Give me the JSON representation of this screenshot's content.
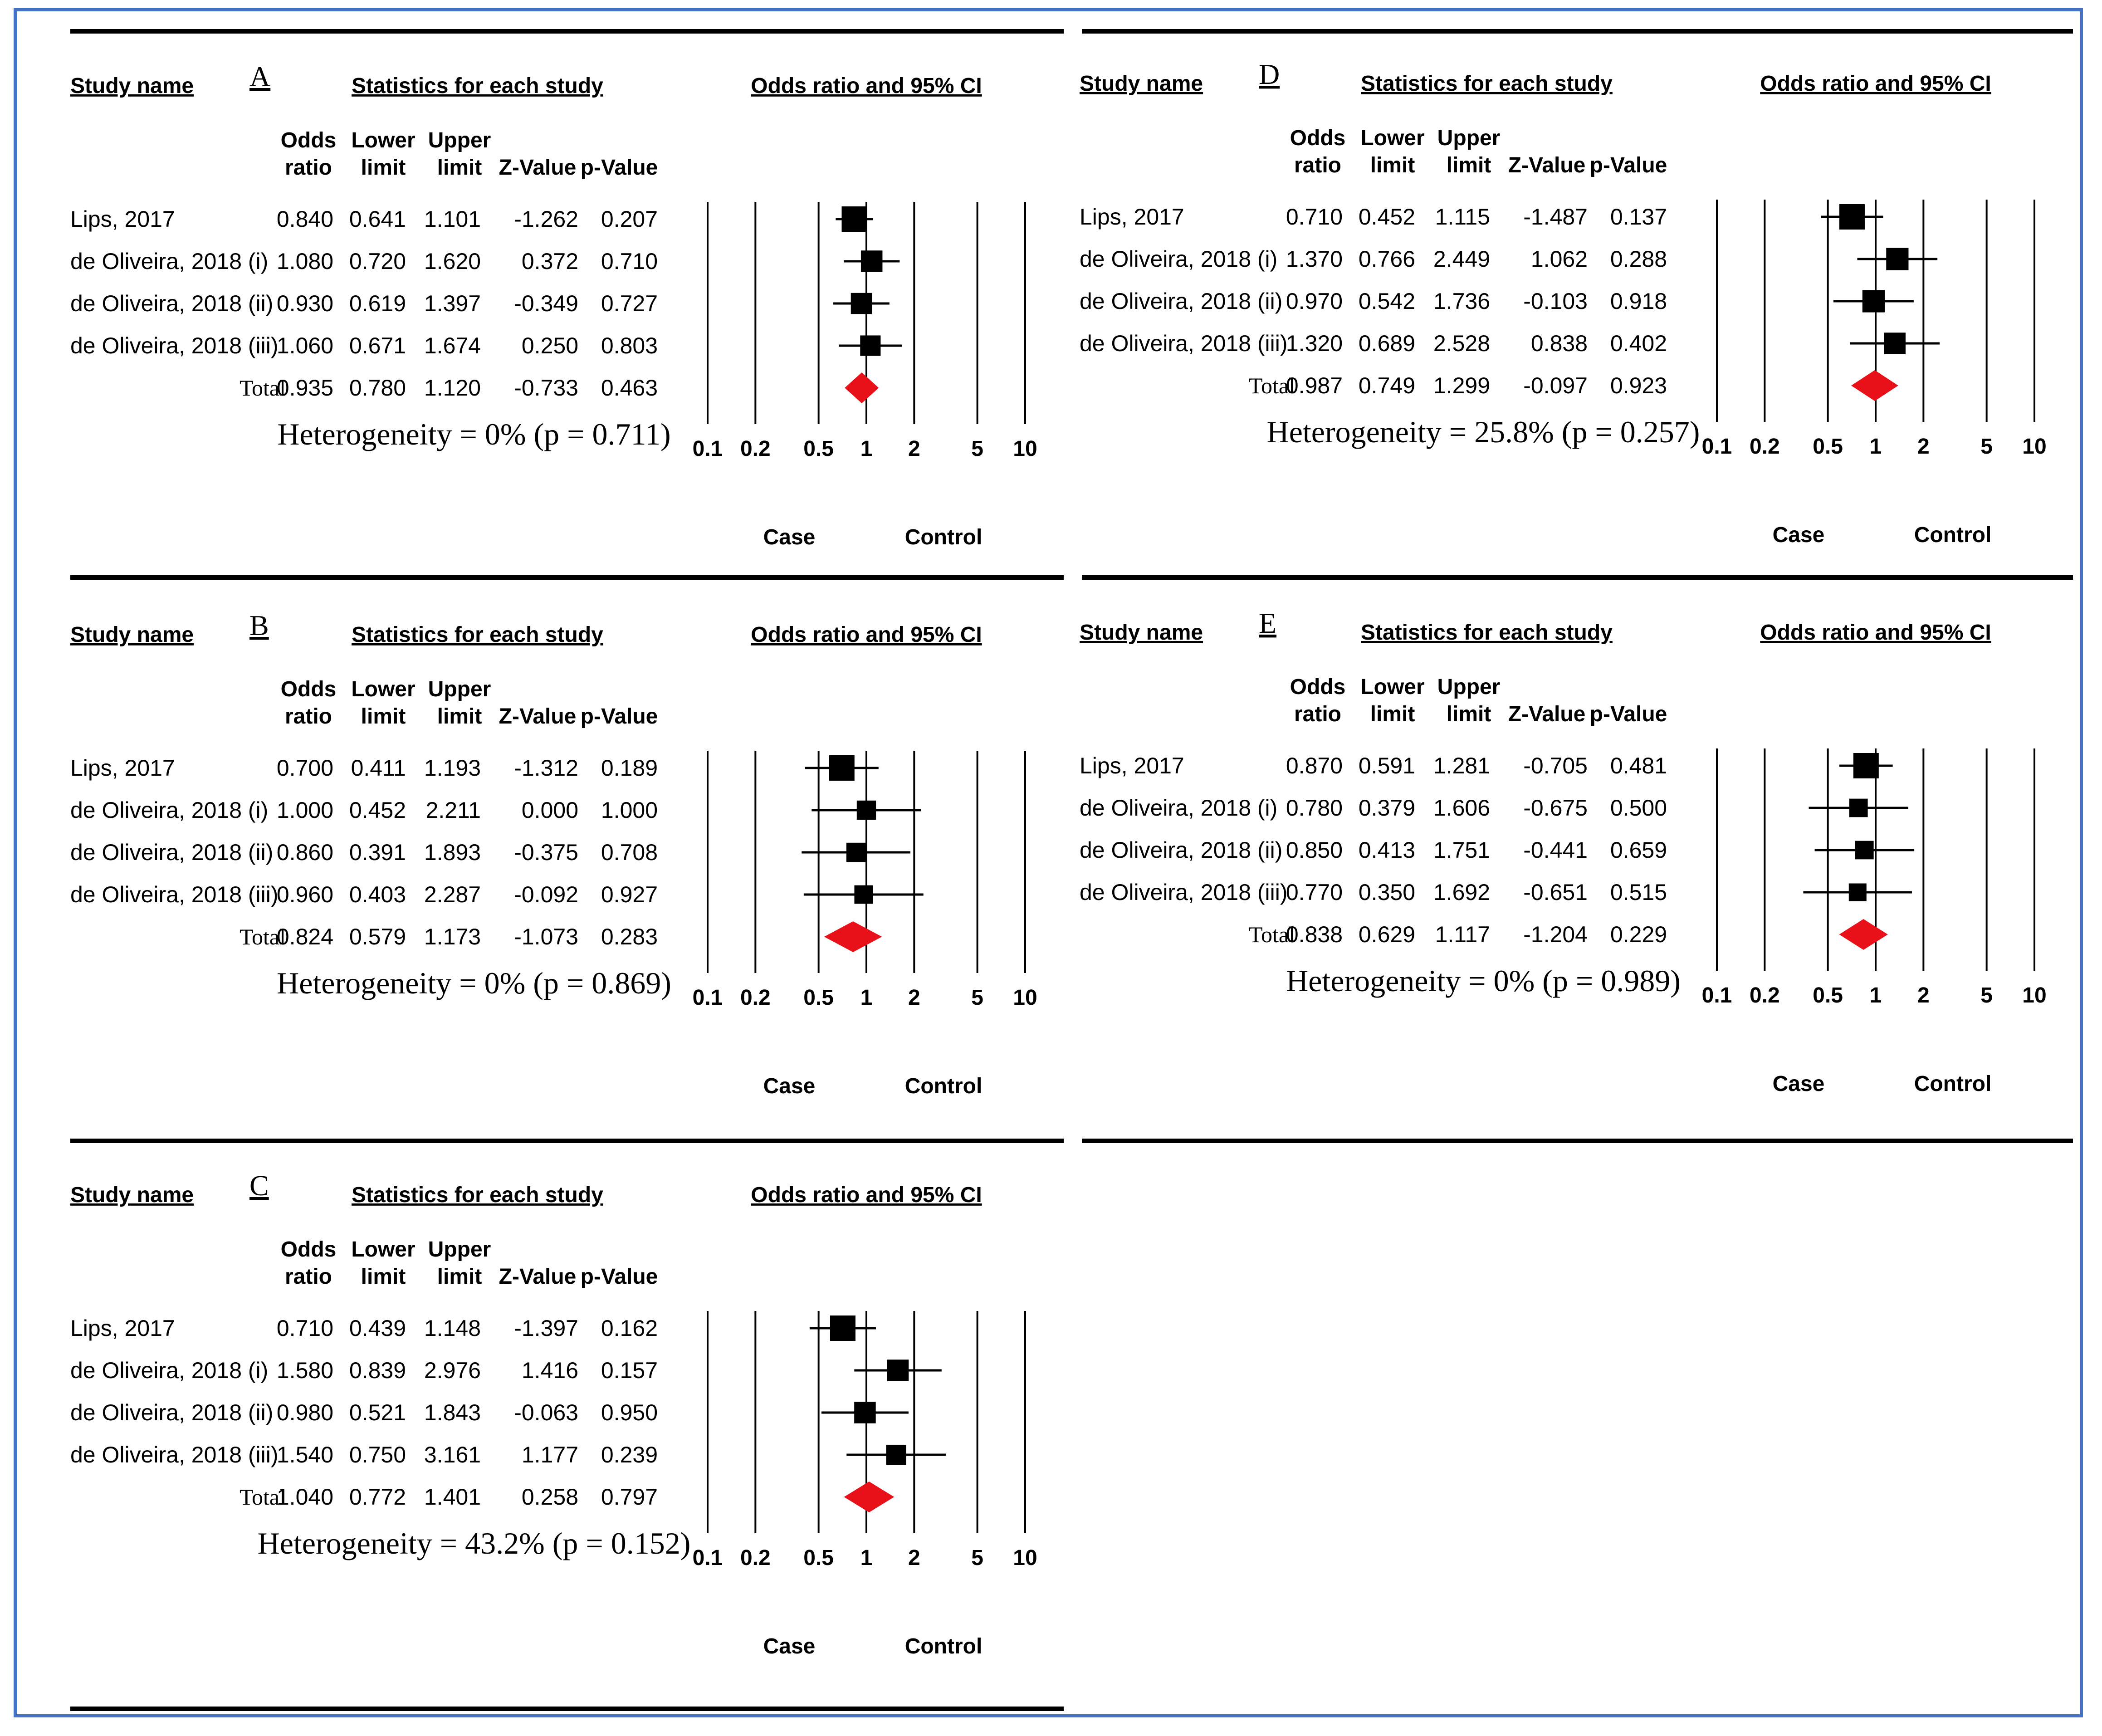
{
  "chart_data": [
    {
      "type": "forest",
      "panel": "A",
      "title": "Odds ratio and 95% CI",
      "headers": {
        "study": "Study name",
        "stats": "Statistics for each study",
        "or1": "Odds",
        "or2": "ratio",
        "ll1": "Lower",
        "ll2": "limit",
        "ul1": "Upper",
        "ul2": "limit",
        "z": "Z-Value",
        "p": "p-Value"
      },
      "rows": [
        {
          "name": "Lips, 2017",
          "or": "0.840",
          "lower": "0.641",
          "upper": "1.101",
          "z": "-1.262",
          "p": "0.207",
          "weight": 1.0
        },
        {
          "name": "de Oliveira, 2018 (i)",
          "or": "1.080",
          "lower": "0.720",
          "upper": "1.620",
          "z": "0.372",
          "p": "0.710",
          "weight": 0.75
        },
        {
          "name": "de Oliveira, 2018 (ii)",
          "or": "0.930",
          "lower": "0.619",
          "upper": "1.397",
          "z": "-0.349",
          "p": "0.727",
          "weight": 0.72
        },
        {
          "name": "de Oliveira, 2018 (iii)",
          "or": "1.060",
          "lower": "0.671",
          "upper": "1.674",
          "z": "0.250",
          "p": "0.803",
          "weight": 0.68
        }
      ],
      "total": {
        "name": "Total",
        "or": "0.935",
        "lower": "0.780",
        "upper": "1.120",
        "z": "-0.733",
        "p": "0.463"
      },
      "heterogeneity": "Heterogeneity = 0% (p = 0.711)",
      "ticks": [
        "0.1",
        "0.2",
        "0.5",
        "1",
        "2",
        "5",
        "10"
      ],
      "xlim": [
        0.1,
        10
      ],
      "left_label": "Case",
      "right_label": "Control"
    },
    {
      "type": "forest",
      "panel": "B",
      "title": "Odds ratio and 95% CI",
      "headers": {
        "study": "Study name",
        "stats": "Statistics for each study",
        "or1": "Odds",
        "or2": "ratio",
        "ll1": "Lower",
        "ll2": "limit",
        "ul1": "Upper",
        "ul2": "limit",
        "z": "Z-Value",
        "p": "p-Value"
      },
      "rows": [
        {
          "name": "Lips, 2017",
          "or": "0.700",
          "lower": "0.411",
          "upper": "1.193",
          "z": "-1.312",
          "p": "0.189",
          "weight": 1.0
        },
        {
          "name": "de Oliveira, 2018 (i)",
          "or": "1.000",
          "lower": "0.452",
          "upper": "2.211",
          "z": "0.000",
          "p": "1.000",
          "weight": 0.6
        },
        {
          "name": "de Oliveira, 2018 (ii)",
          "or": "0.860",
          "lower": "0.391",
          "upper": "1.893",
          "z": "-0.375",
          "p": "0.708",
          "weight": 0.6
        },
        {
          "name": "de Oliveira, 2018 (iii)",
          "or": "0.960",
          "lower": "0.403",
          "upper": "2.287",
          "z": "-0.092",
          "p": "0.927",
          "weight": 0.55
        }
      ],
      "total": {
        "name": "Total",
        "or": "0.824",
        "lower": "0.579",
        "upper": "1.173",
        "z": "-1.073",
        "p": "0.283"
      },
      "heterogeneity": "Heterogeneity = 0% (p = 0.869)",
      "ticks": [
        "0.1",
        "0.2",
        "0.5",
        "1",
        "2",
        "5",
        "10"
      ],
      "xlim": [
        0.1,
        10
      ],
      "left_label": "Case",
      "right_label": "Control"
    },
    {
      "type": "forest",
      "panel": "C",
      "title": "Odds ratio and 95% CI",
      "headers": {
        "study": "Study name",
        "stats": "Statistics for each study",
        "or1": "Odds",
        "or2": "ratio",
        "ll1": "Lower",
        "ll2": "limit",
        "ul1": "Upper",
        "ul2": "limit",
        "z": "Z-Value",
        "p": "p-Value"
      },
      "rows": [
        {
          "name": "Lips, 2017",
          "or": "0.710",
          "lower": "0.439",
          "upper": "1.148",
          "z": "-1.397",
          "p": "0.162",
          "weight": 1.0
        },
        {
          "name": "de Oliveira, 2018 (i)",
          "or": "1.580",
          "lower": "0.839",
          "upper": "2.976",
          "z": "1.416",
          "p": "0.157",
          "weight": 0.75
        },
        {
          "name": "de Oliveira, 2018 (ii)",
          "or": "0.980",
          "lower": "0.521",
          "upper": "1.843",
          "z": "-0.063",
          "p": "0.950",
          "weight": 0.75
        },
        {
          "name": "de Oliveira, 2018 (iii)",
          "or": "1.540",
          "lower": "0.750",
          "upper": "3.161",
          "z": "1.177",
          "p": "0.239",
          "weight": 0.65
        }
      ],
      "total": {
        "name": "Total",
        "or": "1.040",
        "lower": "0.772",
        "upper": "1.401",
        "z": "0.258",
        "p": "0.797"
      },
      "heterogeneity": "Heterogeneity = 43.2% (p = 0.152)",
      "ticks": [
        "0.1",
        "0.2",
        "0.5",
        "1",
        "2",
        "5",
        "10"
      ],
      "xlim": [
        0.1,
        10
      ],
      "left_label": "Case",
      "right_label": "Control"
    },
    {
      "type": "forest",
      "panel": "D",
      "title": "Odds ratio and 95% CI",
      "headers": {
        "study": "Study name",
        "stats": "Statistics for each study",
        "or1": "Odds",
        "or2": "ratio",
        "ll1": "Lower",
        "ll2": "limit",
        "ul1": "Upper",
        "ul2": "limit",
        "z": "Z-Value",
        "p": "p-Value"
      },
      "rows": [
        {
          "name": "Lips, 2017",
          "or": "0.710",
          "lower": "0.452",
          "upper": "1.115",
          "z": "-1.487",
          "p": "0.137",
          "weight": 1.0
        },
        {
          "name": "de Oliveira, 2018 (i)",
          "or": "1.370",
          "lower": "0.766",
          "upper": "2.449",
          "z": "1.062",
          "p": "0.288",
          "weight": 0.8
        },
        {
          "name": "de Oliveira, 2018 (ii)",
          "or": "0.970",
          "lower": "0.542",
          "upper": "1.736",
          "z": "-0.103",
          "p": "0.918",
          "weight": 0.8
        },
        {
          "name": "de Oliveira, 2018 (iii)",
          "or": "1.320",
          "lower": "0.689",
          "upper": "2.528",
          "z": "0.838",
          "p": "0.402",
          "weight": 0.75
        }
      ],
      "total": {
        "name": "Total",
        "or": "0.987",
        "lower": "0.749",
        "upper": "1.299",
        "z": "-0.097",
        "p": "0.923"
      },
      "heterogeneity": "Heterogeneity = 25.8% (p = 0.257)",
      "ticks": [
        "0.1",
        "0.2",
        "0.5",
        "1",
        "2",
        "5",
        "10"
      ],
      "xlim": [
        0.1,
        10
      ],
      "left_label": "Case",
      "right_label": "Control"
    },
    {
      "type": "forest",
      "panel": "E",
      "title": "Odds ratio and 95% CI",
      "headers": {
        "study": "Study name",
        "stats": "Statistics for each study",
        "or1": "Odds",
        "or2": "ratio",
        "ll1": "Lower",
        "ll2": "limit",
        "ul1": "Upper",
        "ul2": "limit",
        "z": "Z-Value",
        "p": "p-Value"
      },
      "rows": [
        {
          "name": "Lips, 2017",
          "or": "0.870",
          "lower": "0.591",
          "upper": "1.281",
          "z": "-0.705",
          "p": "0.481",
          "weight": 1.0
        },
        {
          "name": "de Oliveira, 2018 (i)",
          "or": "0.780",
          "lower": "0.379",
          "upper": "1.606",
          "z": "-0.675",
          "p": "0.500",
          "weight": 0.55
        },
        {
          "name": "de Oliveira, 2018 (ii)",
          "or": "0.850",
          "lower": "0.413",
          "upper": "1.751",
          "z": "-0.441",
          "p": "0.659",
          "weight": 0.55
        },
        {
          "name": "de Oliveira, 2018 (iii)",
          "or": "0.770",
          "lower": "0.350",
          "upper": "1.692",
          "z": "-0.651",
          "p": "0.515",
          "weight": 0.5
        }
      ],
      "total": {
        "name": "Total",
        "or": "0.838",
        "lower": "0.629",
        "upper": "1.117",
        "z": "-1.204",
        "p": "0.229"
      },
      "heterogeneity": "Heterogeneity = 0% (p = 0.989)",
      "ticks": [
        "0.1",
        "0.2",
        "0.5",
        "1",
        "2",
        "5",
        "10"
      ],
      "xlim": [
        0.1,
        10
      ],
      "left_label": "Case",
      "right_label": "Control"
    }
  ],
  "colors": {
    "summary_diamond": "#e8111a",
    "frame": "#4472c4",
    "ink": "#000000"
  }
}
